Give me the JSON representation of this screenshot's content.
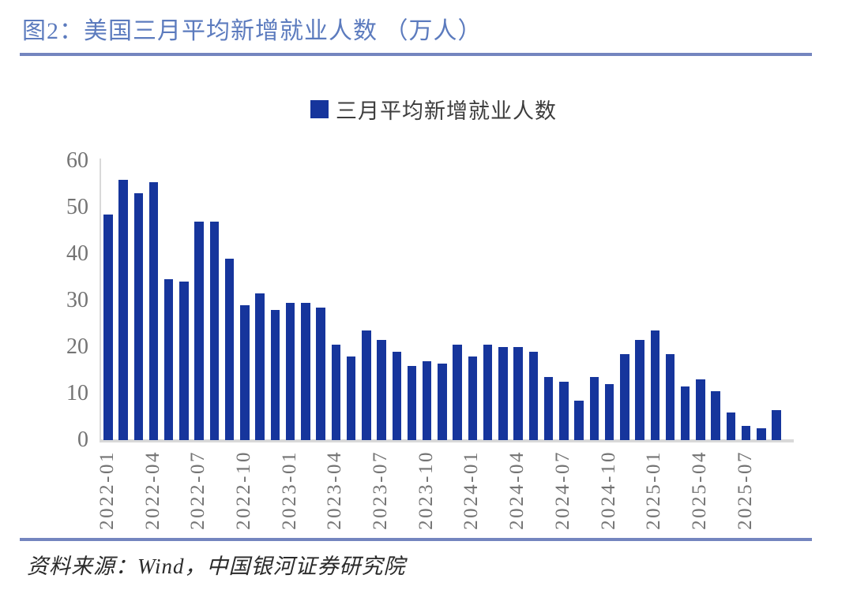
{
  "header": {
    "title": "图2：美国三月平均新增就业人数 （万人）"
  },
  "legend": {
    "label": "三月平均新增就业人数",
    "marker_color": "#16359C"
  },
  "footer": {
    "source": "资料来源：Wind，中国银河证券研究院"
  },
  "colors": {
    "title_color": "#5C7BBE",
    "rule_color": "#7485BF",
    "bar_color": "#16359C",
    "axis_line_color": "#D9D9D9",
    "tick_label_color": "#737373",
    "legend_text_color": "#3D3D3D"
  },
  "chart_data": {
    "type": "bar",
    "title": "图2：美国三月平均新增就业人数 （万人）",
    "xlabel": "",
    "ylabel": "",
    "unit": "万人",
    "ylim": [
      0,
      60
    ],
    "yticks": [
      0,
      10,
      20,
      30,
      40,
      50,
      60
    ],
    "xtick_every": 3,
    "grid": false,
    "legend_entries": [
      "三月平均新增就业人数"
    ],
    "legend_position": "top-center",
    "categories": [
      "2022-01",
      "2022-02",
      "2022-03",
      "2022-04",
      "2022-05",
      "2022-06",
      "2022-07",
      "2022-08",
      "2022-09",
      "2022-10",
      "2022-11",
      "2022-12",
      "2023-01",
      "2023-02",
      "2023-03",
      "2023-04",
      "2023-05",
      "2023-06",
      "2023-07",
      "2023-08",
      "2023-09",
      "2023-10",
      "2023-11",
      "2023-12",
      "2024-01",
      "2024-02",
      "2024-03",
      "2024-04",
      "2024-05",
      "2024-06",
      "2024-07",
      "2024-08",
      "2024-09",
      "2024-10",
      "2024-11",
      "2024-12",
      "2025-01",
      "2025-02",
      "2025-03",
      "2025-04",
      "2025-05",
      "2025-06",
      "2025-07",
      "2025-08",
      "2025-09"
    ],
    "values": [
      48.5,
      56,
      53,
      55.5,
      34.5,
      34,
      47,
      47,
      39,
      29,
      31.5,
      28,
      29.5,
      29.5,
      28.5,
      20.5,
      18,
      23.5,
      21.5,
      19,
      16,
      17,
      16.5,
      20.5,
      18,
      20.5,
      20,
      20,
      19,
      13.5,
      12.5,
      8.5,
      13.5,
      12,
      18.5,
      21.5,
      23.5,
      18.5,
      11.5,
      13,
      10.5,
      6,
      3,
      2.5,
      6.5
    ]
  }
}
